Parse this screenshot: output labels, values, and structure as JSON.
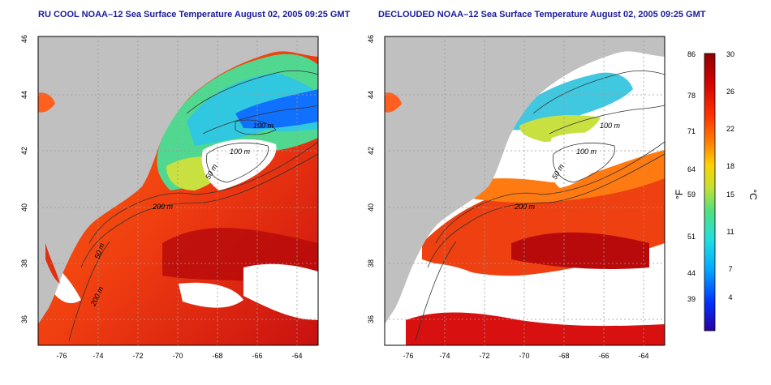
{
  "panels": [
    {
      "title": "RU COOL NOAA–12 Sea Surface Temperature August 02, 2005 09:25 GMT",
      "x_ticks": [
        "-76",
        "-74",
        "-72",
        "-70",
        "-68",
        "-66",
        "-64"
      ],
      "y_ticks": [
        "46",
        "44",
        "42",
        "40",
        "38",
        "36"
      ],
      "contour_labels": [
        "100 m",
        "100 m",
        "50 m",
        "200 m",
        "50 m",
        "200 m"
      ]
    },
    {
      "title": "DECLOUDED NOAA–12 Sea Surface Temperature August 02, 2005 09:25 GMT",
      "x_ticks": [
        "-76",
        "-74",
        "-72",
        "-70",
        "-68",
        "-66",
        "-64"
      ],
      "y_ticks": [
        "46",
        "44",
        "42",
        "40",
        "38",
        "36"
      ],
      "contour_labels": [
        "100 m",
        "100 m",
        "50 m",
        "200 m"
      ]
    }
  ],
  "colorbar": {
    "f_label": "°F",
    "c_label": "°C",
    "f_ticks": [
      "86",
      "78",
      "71",
      "64",
      "59",
      "51",
      "44",
      "39"
    ],
    "c_ticks": [
      "30",
      "26",
      "22",
      "18",
      "15",
      "11",
      "7",
      "4"
    ],
    "colors": [
      "#2a00a0",
      "#0030ff",
      "#00a8ff",
      "#20e0e0",
      "#50e080",
      "#c8e030",
      "#ffd000",
      "#ff8000",
      "#ff3000",
      "#d00000",
      "#900000"
    ]
  },
  "colors": {
    "land": "#c0c0c0",
    "cloud": "#ffffff",
    "title": "#1a1a9c"
  }
}
